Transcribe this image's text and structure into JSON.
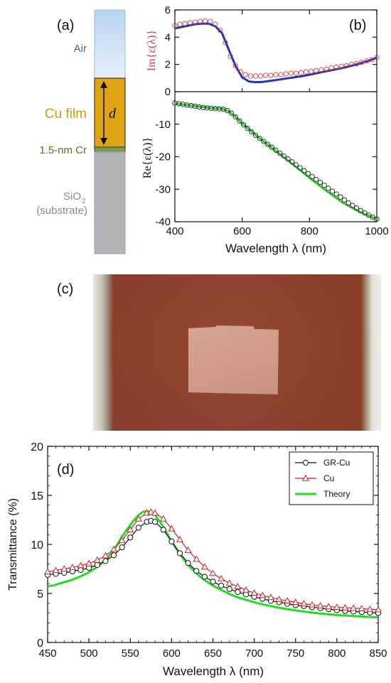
{
  "panel_labels": {
    "a": "(a)",
    "b": "(b)",
    "c": "(c)",
    "d": "(d)"
  },
  "layer_stack": {
    "air": "Air",
    "cu_film": "Cu film",
    "thickness_symbol": "d",
    "cr_layer": "1.5-nm Cr",
    "substrate_line1": "SiO",
    "substrate_sub": "2",
    "substrate_line2": "(substrate)",
    "colors": {
      "air_top": "#b9d3f0",
      "air_bottom": "#e6f0fb",
      "cu": "#e0a514",
      "cr": "#7d9a4e",
      "substrate": "#b4b4b4",
      "cu_text": "#d49a10",
      "cr_text": "#4a7a1e",
      "air_text": "#4a6a90",
      "substrate_text": "#8a8a8a"
    }
  },
  "chart_data": [
    {
      "id": "b",
      "type": "line",
      "xlabel": "Wavelength λ (nm)",
      "xlim": [
        400,
        1000
      ],
      "x_ticks": [
        "400",
        "600",
        "800",
        "1000"
      ],
      "top_panel": {
        "ylabel": "Im{ε(λ)}",
        "ylim": [
          0,
          6
        ],
        "y_ticks": [
          "0",
          "2",
          "4",
          "6"
        ],
        "series": [
          {
            "style": "markers",
            "color": "#d43c3c",
            "x": [
              400,
              415,
              430,
              445,
              460,
              475,
              490,
              505,
              520,
              535,
              550,
              565,
              580,
              595,
              610,
              625,
              640,
              655,
              670,
              685,
              700,
              715,
              730,
              745,
              760,
              775,
              790,
              805,
              820,
              835,
              850,
              865,
              880,
              895,
              910,
              925,
              940,
              955,
              970,
              985,
              1000
            ],
            "y": [
              4.85,
              4.95,
              5.0,
              5.05,
              5.1,
              5.15,
              5.2,
              5.15,
              4.95,
              4.5,
              3.6,
              2.6,
              1.9,
              1.45,
              1.25,
              1.15,
              1.15,
              1.15,
              1.2,
              1.2,
              1.25,
              1.25,
              1.3,
              1.35,
              1.35,
              1.4,
              1.45,
              1.5,
              1.55,
              1.6,
              1.65,
              1.75,
              1.8,
              1.85,
              1.9,
              2.0,
              2.05,
              2.15,
              2.25,
              2.35,
              2.5
            ]
          },
          {
            "style": "line",
            "color": "#2233bb",
            "x": [
              400,
              420,
              440,
              460,
              480,
              500,
              520,
              540,
              560,
              580,
              600,
              620,
              640,
              660,
              680,
              700,
              740,
              780,
              820,
              860,
              900,
              940,
              980,
              1000
            ],
            "y": [
              4.65,
              4.75,
              4.85,
              4.95,
              5.0,
              5.0,
              4.8,
              4.3,
              3.1,
              1.9,
              1.05,
              0.75,
              0.7,
              0.72,
              0.78,
              0.85,
              1.0,
              1.15,
              1.35,
              1.55,
              1.75,
              2.0,
              2.3,
              2.5
            ]
          }
        ]
      },
      "bottom_panel": {
        "ylabel": "Re{ε(λ)}",
        "ylim": [
          -40,
          0
        ],
        "y_ticks": [
          "-10",
          "-20",
          "-30",
          "-40"
        ],
        "series": [
          {
            "style": "markers",
            "color": "#222222",
            "x": [
              400,
              412,
              424,
              436,
              448,
              460,
              472,
              484,
              496,
              508,
              520,
              532,
              544,
              556,
              568,
              580,
              592,
              604,
              616,
              628,
              640,
              652,
              664,
              676,
              688,
              700,
              712,
              724,
              736,
              748,
              760,
              772,
              784,
              796,
              808,
              820,
              832,
              844,
              856,
              868,
              880,
              892,
              904,
              916,
              928,
              940,
              952,
              964,
              976,
              988,
              1000
            ],
            "y": [
              -3.5,
              -3.7,
              -3.9,
              -4.1,
              -4.3,
              -4.5,
              -4.7,
              -4.9,
              -5.0,
              -5.1,
              -5.2,
              -5.3,
              -5.4,
              -5.8,
              -6.6,
              -7.8,
              -9.0,
              -10.2,
              -11.3,
              -12.4,
              -13.4,
              -14.4,
              -15.3,
              -16.2,
              -17.1,
              -18.0,
              -18.9,
              -19.8,
              -20.7,
              -21.6,
              -22.5,
              -23.4,
              -24.3,
              -25.2,
              -26.1,
              -27.0,
              -27.9,
              -28.8,
              -29.7,
              -30.6,
              -31.5,
              -32.4,
              -33.3,
              -34.2,
              -35.0,
              -35.8,
              -36.6,
              -37.3,
              -38.0,
              -38.6,
              -39.2
            ]
          },
          {
            "style": "line",
            "color": "#33cc33",
            "x": [
              400,
              450,
              500,
              540,
              560,
              580,
              600,
              650,
              700,
              750,
              800,
              850,
              900,
              950,
              1000
            ],
            "y": [
              -3.6,
              -4.3,
              -5.0,
              -5.3,
              -6.0,
              -7.7,
              -9.8,
              -14.2,
              -18.2,
              -22.3,
              -26.5,
              -30.5,
              -34.2,
              -37.0,
              -39.2
            ]
          }
        ]
      }
    },
    {
      "id": "d",
      "type": "line",
      "xlabel": "Wavelength λ (nm)",
      "ylabel": "Transmittance (%)",
      "xlim": [
        450,
        850
      ],
      "ylim": [
        0,
        20
      ],
      "x_ticks": [
        "450",
        "500",
        "550",
        "600",
        "650",
        "700",
        "750",
        "800",
        "850"
      ],
      "y_ticks": [
        "0",
        "5",
        "10",
        "15",
        "20"
      ],
      "legend_position": "top-right",
      "series": [
        {
          "name": "GR-Cu",
          "marker": "circle",
          "color": "#111111",
          "x": [
            450,
            460,
            470,
            480,
            490,
            500,
            510,
            520,
            530,
            540,
            550,
            560,
            570,
            575,
            580,
            590,
            600,
            610,
            620,
            630,
            640,
            650,
            660,
            670,
            680,
            690,
            700,
            710,
            720,
            730,
            740,
            750,
            760,
            770,
            780,
            790,
            800,
            810,
            820,
            830,
            840,
            850
          ],
          "y": [
            6.9,
            7.0,
            7.1,
            7.25,
            7.4,
            7.6,
            7.9,
            8.3,
            8.9,
            9.7,
            10.7,
            11.7,
            12.3,
            12.4,
            12.3,
            11.5,
            10.3,
            9.1,
            8.1,
            7.3,
            6.7,
            6.2,
            5.8,
            5.45,
            5.15,
            4.9,
            4.65,
            4.45,
            4.25,
            4.1,
            3.95,
            3.8,
            3.7,
            3.6,
            3.5,
            3.4,
            3.3,
            3.2,
            3.15,
            3.1,
            3.05,
            3.0
          ]
        },
        {
          "name": "Cu",
          "marker": "triangle",
          "color": "#cc2222",
          "x": [
            450,
            460,
            470,
            480,
            490,
            500,
            510,
            520,
            530,
            540,
            550,
            560,
            570,
            575,
            580,
            590,
            600,
            610,
            620,
            630,
            640,
            650,
            660,
            670,
            680,
            690,
            700,
            710,
            720,
            730,
            740,
            750,
            760,
            770,
            780,
            790,
            800,
            810,
            820,
            830,
            840,
            850
          ],
          "y": [
            7.2,
            7.35,
            7.5,
            7.65,
            7.85,
            8.05,
            8.4,
            8.85,
            9.5,
            10.4,
            11.5,
            12.6,
            13.2,
            13.3,
            13.2,
            12.6,
            11.6,
            10.5,
            9.4,
            8.5,
            7.7,
            7.05,
            6.5,
            6.05,
            5.7,
            5.35,
            5.05,
            4.8,
            4.6,
            4.4,
            4.25,
            4.1,
            3.95,
            3.85,
            3.75,
            3.65,
            3.6,
            3.55,
            3.5,
            3.45,
            3.4,
            3.35
          ]
        },
        {
          "name": "Theory",
          "marker": "none",
          "color": "#22dd22",
          "x": [
            450,
            460,
            470,
            480,
            490,
            500,
            510,
            520,
            530,
            540,
            550,
            560,
            565,
            570,
            575,
            580,
            590,
            600,
            610,
            620,
            630,
            640,
            650,
            660,
            670,
            680,
            700,
            720,
            740,
            760,
            780,
            800,
            820,
            840,
            850
          ],
          "y": [
            5.7,
            5.9,
            6.15,
            6.4,
            6.75,
            7.15,
            7.7,
            8.4,
            9.4,
            10.8,
            12.0,
            13.0,
            13.3,
            13.4,
            13.3,
            13.0,
            11.8,
            10.3,
            9.0,
            7.9,
            7.05,
            6.35,
            5.8,
            5.35,
            4.95,
            4.6,
            4.1,
            3.7,
            3.4,
            3.15,
            2.95,
            2.8,
            2.7,
            2.6,
            2.55
          ]
        }
      ]
    }
  ]
}
